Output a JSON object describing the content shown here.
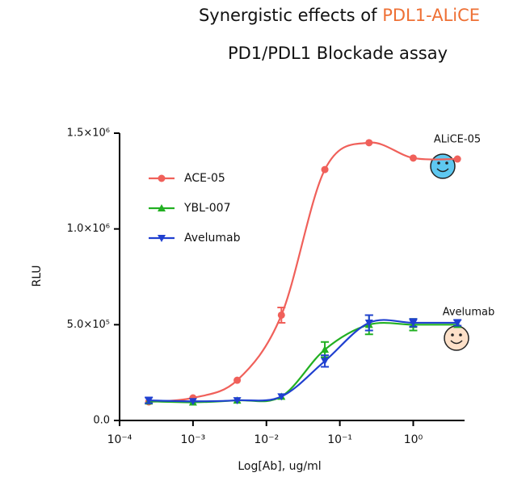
{
  "chart_data": {
    "type": "line",
    "title": "Synergistic effects of",
    "title_highlight": "PDL1-ALiCE",
    "subtitle": "PD1/PDL1 Blockade assay",
    "x_label": "Log[Ab], ug/ml",
    "y_label": "RLU",
    "log_x": true,
    "x": [
      0.00025,
      0.001,
      0.004,
      0.016,
      0.0625,
      0.25,
      1,
      4
    ],
    "series": [
      {
        "name": "ACE-05",
        "color": "#f0605a",
        "marker": "circle",
        "values": [
          97000,
          118000,
          210000,
          550000,
          1310000,
          1450000,
          1370000,
          1365000
        ],
        "errors": [
          0,
          0,
          0,
          40000,
          0,
          0,
          0,
          0
        ]
      },
      {
        "name": "YBL-007",
        "color": "#22b022",
        "marker": "triangle-up",
        "values": [
          100000,
          95000,
          105000,
          125000,
          370000,
          500000,
          500000,
          500000
        ],
        "errors": [
          0,
          0,
          0,
          0,
          40000,
          50000,
          30000,
          0
        ]
      },
      {
        "name": "Avelumab",
        "color": "#2040d0",
        "marker": "triangle-down",
        "values": [
          105000,
          100000,
          105000,
          125000,
          310000,
          510000,
          510000,
          510000
        ],
        "errors": [
          15000,
          0,
          0,
          0,
          30000,
          40000,
          20000,
          15000
        ]
      }
    ],
    "xlim": [
      0.0001,
      5
    ],
    "xticks": [
      {
        "value": 0.0001,
        "label": "10⁻⁴"
      },
      {
        "value": 0.001,
        "label": "10⁻³"
      },
      {
        "value": 0.01,
        "label": "10⁻²"
      },
      {
        "value": 0.1,
        "label": "10⁻¹"
      },
      {
        "value": 1,
        "label": "10⁰"
      }
    ],
    "ylim": [
      0,
      1500000
    ],
    "yticks": [
      {
        "value": 0,
        "label": "0.0"
      },
      {
        "value": 500000,
        "label": "5.0×10⁵"
      },
      {
        "value": 1000000,
        "label": "1.0×10⁶"
      },
      {
        "value": 1500000,
        "label": "1.5×10⁶"
      }
    ],
    "legend_position": "upper-left",
    "annotations": [
      "ALiCE-05",
      "Avelumab"
    ]
  }
}
